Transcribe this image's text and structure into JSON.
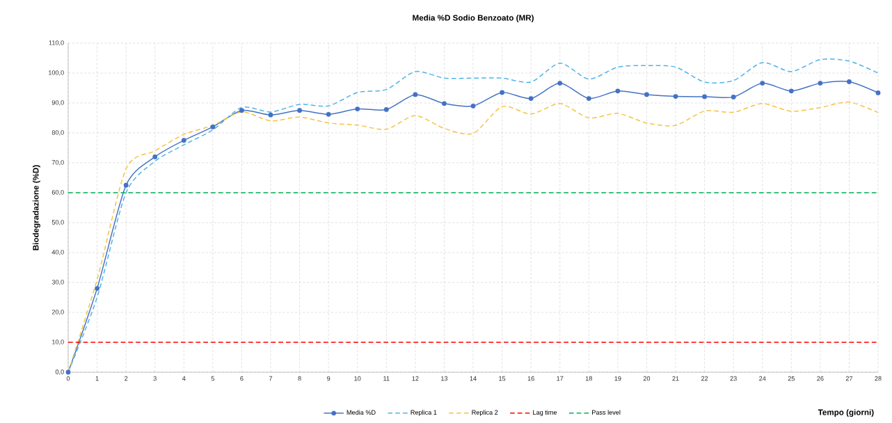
{
  "chart_data": {
    "type": "line",
    "title": "Media %D Sodio Benzoato (MR)",
    "xlabel": "Tempo (giorni)",
    "ylabel": "Biodegradazione  (%D)",
    "x": [
      0,
      1,
      2,
      3,
      4,
      5,
      6,
      7,
      8,
      9,
      10,
      11,
      12,
      13,
      14,
      15,
      16,
      17,
      18,
      19,
      20,
      21,
      22,
      23,
      24,
      25,
      26,
      27,
      28
    ],
    "series": [
      {
        "name": "Media %D",
        "color": "#4472c4",
        "marker": "circle",
        "line_style": "solid",
        "values": [
          0,
          28,
          62.5,
          72,
          77.5,
          82,
          87.5,
          86,
          87.5,
          86.2,
          88,
          87.8,
          92.8,
          89.8,
          89,
          93.5,
          91.5,
          96.6,
          91.5,
          94,
          92.8,
          92.2,
          92.1,
          92,
          96.6,
          94,
          96.6,
          97.1,
          93.4
        ]
      },
      {
        "name": "Replica 1",
        "color": "#4fb3e8",
        "marker": "none",
        "line_style": "dashed",
        "values": [
          0,
          25,
          60,
          70.5,
          76,
          81,
          88.5,
          87,
          89.5,
          89,
          93.5,
          94.5,
          100.5,
          98.3,
          98.3,
          98.3,
          97,
          103.3,
          98,
          102,
          102.5,
          102,
          97,
          97.5,
          103.5,
          100.5,
          104.5,
          104,
          100
        ]
      },
      {
        "name": "Replica 2",
        "color": "#f5c242",
        "marker": "none",
        "line_style": "dashed",
        "values": [
          0,
          31,
          68,
          74,
          79.5,
          82.5,
          87,
          84,
          85.3,
          83.3,
          82.6,
          81.2,
          85.8,
          81.5,
          79.8,
          88.8,
          86.3,
          89.8,
          85,
          86.5,
          83.3,
          82.5,
          87.3,
          86.9,
          89.8,
          87.2,
          88.5,
          90.3,
          86.8
        ]
      }
    ],
    "ref_lines": [
      {
        "axis": "y",
        "value": 10,
        "label": "Lag time",
        "color": "#ff0000",
        "line_style": "dashed"
      },
      {
        "axis": "y",
        "value": 60,
        "label": "Pass level",
        "color": "#00b050",
        "line_style": "dashed"
      }
    ],
    "xlim": [
      0,
      28
    ],
    "xticks": [
      0,
      1,
      2,
      3,
      4,
      5,
      6,
      7,
      8,
      9,
      10,
      11,
      12,
      13,
      14,
      15,
      16,
      17,
      18,
      19,
      20,
      21,
      22,
      23,
      24,
      25,
      26,
      27,
      28
    ],
    "ylim": [
      0,
      110
    ],
    "yticks": [
      {
        "value": 0,
        "label": "0,0"
      },
      {
        "value": 10,
        "label": "10,0"
      },
      {
        "value": 20,
        "label": "20,0"
      },
      {
        "value": 30,
        "label": "30,0"
      },
      {
        "value": 40,
        "label": "40,0"
      },
      {
        "value": 50,
        "label": "50,0"
      },
      {
        "value": 60,
        "label": "60,0"
      },
      {
        "value": 70,
        "label": "70,0"
      },
      {
        "value": 80,
        "label": "80,0"
      },
      {
        "value": 90,
        "label": "90,0"
      },
      {
        "value": 100,
        "label": "100,0"
      },
      {
        "value": 110,
        "label": "110,0"
      }
    ],
    "grid": true,
    "legend": "bottom"
  }
}
